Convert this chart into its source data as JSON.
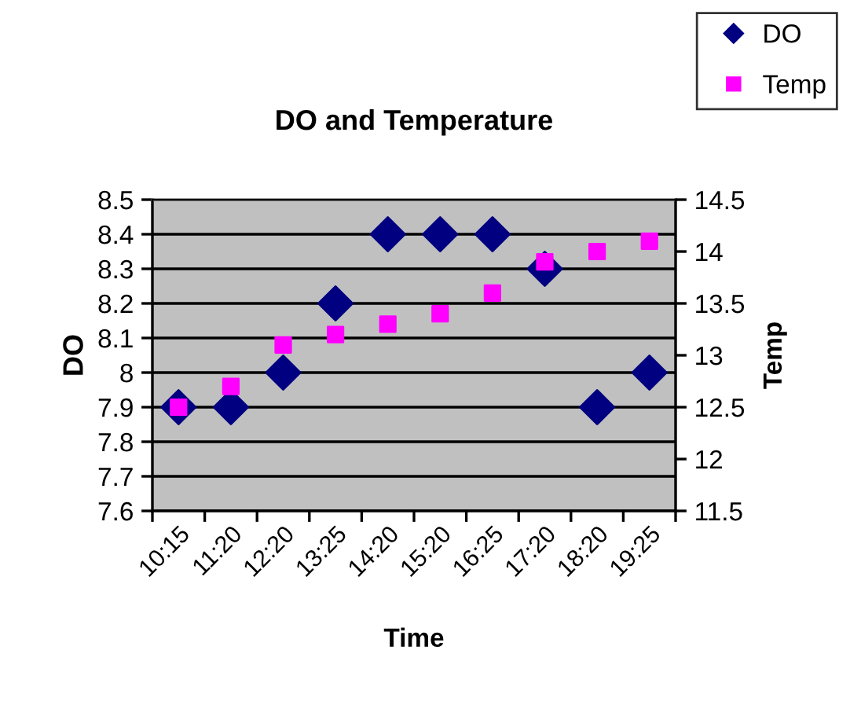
{
  "chart_data": {
    "type": "scatter",
    "title": "DO and Temperature",
    "xlabel": "Time",
    "ylabel": "DO",
    "y2label": "Temp",
    "categories": [
      "10:15",
      "11:20",
      "12:20",
      "13:25",
      "14:20",
      "15:20",
      "16:25",
      "17:20",
      "18:20",
      "19:25"
    ],
    "series": [
      {
        "name": "DO",
        "color": "#000080",
        "marker": "diamond",
        "values": [
          7.9,
          7.9,
          8.0,
          8.2,
          8.4,
          8.4,
          8.4,
          8.3,
          7.9,
          8.0
        ]
      },
      {
        "name": "Temp",
        "color": "#ff00ff",
        "marker": "square",
        "axis": "y2",
        "values": [
          12.5,
          12.7,
          13.1,
          13.2,
          13.3,
          13.4,
          13.6,
          13.9,
          14.0,
          14.1
        ]
      }
    ],
    "ylim": [
      7.6,
      8.5
    ],
    "yticks": [
      {
        "value": 7.6,
        "label": "7.6"
      },
      {
        "value": 7.7,
        "label": "7.7"
      },
      {
        "value": 7.8,
        "label": "7.8"
      },
      {
        "value": 7.9,
        "label": "7.9"
      },
      {
        "value": 8.0,
        "label": "8"
      },
      {
        "value": 8.1,
        "label": "8.1"
      },
      {
        "value": 8.2,
        "label": "8.2"
      },
      {
        "value": 8.3,
        "label": "8.3"
      },
      {
        "value": 8.4,
        "label": "8.4"
      },
      {
        "value": 8.5,
        "label": "8.5"
      }
    ],
    "y2lim": [
      11.5,
      14.5
    ],
    "y2ticks": [
      11.5,
      12,
      12.5,
      13,
      13.5,
      14,
      14.5
    ],
    "grid": "y",
    "legend": "top right"
  }
}
